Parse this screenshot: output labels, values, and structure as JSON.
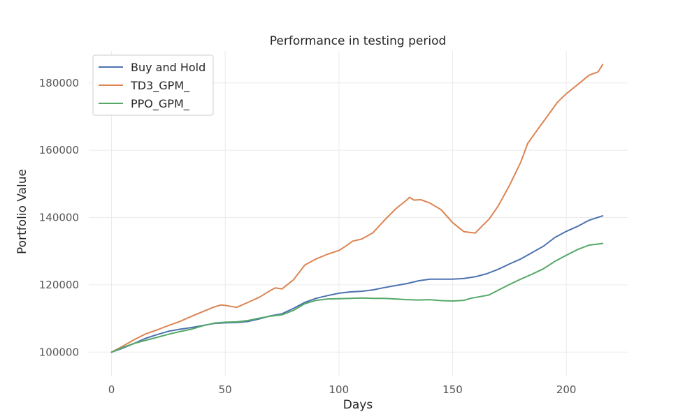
{
  "chart_data": {
    "type": "line",
    "title": "Performance in testing period",
    "xlabel": "Days",
    "ylabel": "Portfolio Value",
    "xlim": [
      -10,
      227
    ],
    "ylim": [
      93000,
      189500
    ],
    "xticks": [
      0,
      50,
      100,
      150,
      200
    ],
    "yticks": [
      100000,
      120000,
      140000,
      160000,
      180000
    ],
    "grid": true,
    "legend_position": "top-left",
    "series": [
      {
        "name": "Buy and Hold",
        "color": "#4c72b0",
        "points": [
          [
            0,
            100000
          ],
          [
            5,
            101200
          ],
          [
            10,
            102600
          ],
          [
            15,
            104100
          ],
          [
            20,
            105200
          ],
          [
            25,
            106200
          ],
          [
            30,
            106800
          ],
          [
            35,
            107300
          ],
          [
            40,
            107900
          ],
          [
            45,
            108500
          ],
          [
            50,
            108700
          ],
          [
            55,
            108800
          ],
          [
            60,
            109100
          ],
          [
            65,
            109900
          ],
          [
            70,
            110800
          ],
          [
            75,
            111400
          ],
          [
            80,
            113000
          ],
          [
            85,
            114800
          ],
          [
            90,
            116000
          ],
          [
            95,
            116800
          ],
          [
            100,
            117500
          ],
          [
            105,
            117900
          ],
          [
            110,
            118100
          ],
          [
            115,
            118500
          ],
          [
            120,
            119200
          ],
          [
            125,
            119800
          ],
          [
            130,
            120400
          ],
          [
            135,
            121200
          ],
          [
            140,
            121700
          ],
          [
            145,
            121700
          ],
          [
            150,
            121700
          ],
          [
            155,
            121900
          ],
          [
            160,
            122400
          ],
          [
            165,
            123300
          ],
          [
            170,
            124600
          ],
          [
            175,
            126200
          ],
          [
            180,
            127700
          ],
          [
            185,
            129600
          ],
          [
            190,
            131500
          ],
          [
            195,
            134100
          ],
          [
            200,
            135900
          ],
          [
            205,
            137400
          ],
          [
            210,
            139200
          ],
          [
            216,
            140500
          ]
        ]
      },
      {
        "name": "TD3_GPM_",
        "color": "#dd8452",
        "points": [
          [
            0,
            100000
          ],
          [
            5,
            101800
          ],
          [
            10,
            103700
          ],
          [
            15,
            105400
          ],
          [
            20,
            106600
          ],
          [
            25,
            107900
          ],
          [
            30,
            109100
          ],
          [
            35,
            110600
          ],
          [
            40,
            112000
          ],
          [
            45,
            113400
          ],
          [
            48,
            114000
          ],
          [
            50,
            113900
          ],
          [
            55,
            113300
          ],
          [
            60,
            114800
          ],
          [
            65,
            116300
          ],
          [
            70,
            118400
          ],
          [
            72,
            119100
          ],
          [
            75,
            118800
          ],
          [
            80,
            121500
          ],
          [
            85,
            125900
          ],
          [
            90,
            127700
          ],
          [
            95,
            129100
          ],
          [
            100,
            130200
          ],
          [
            103,
            131500
          ],
          [
            106,
            133000
          ],
          [
            110,
            133600
          ],
          [
            115,
            135500
          ],
          [
            120,
            139200
          ],
          [
            125,
            142600
          ],
          [
            130,
            145300
          ],
          [
            131,
            146000
          ],
          [
            133,
            145200
          ],
          [
            136,
            145300
          ],
          [
            140,
            144300
          ],
          [
            145,
            142300
          ],
          [
            150,
            138500
          ],
          [
            155,
            135800
          ],
          [
            160,
            135400
          ],
          [
            163,
            137500
          ],
          [
            166,
            139500
          ],
          [
            170,
            143400
          ],
          [
            175,
            149500
          ],
          [
            180,
            156500
          ],
          [
            183,
            162000
          ],
          [
            187,
            165800
          ],
          [
            192,
            170400
          ],
          [
            196,
            174200
          ],
          [
            200,
            176800
          ],
          [
            205,
            179500
          ],
          [
            210,
            182300
          ],
          [
            214,
            183300
          ],
          [
            216,
            185500
          ]
        ]
      },
      {
        "name": "PPO_GPM_",
        "color": "#55a868",
        "points": [
          [
            0,
            100000
          ],
          [
            5,
            101400
          ],
          [
            10,
            102600
          ],
          [
            15,
            103500
          ],
          [
            20,
            104400
          ],
          [
            25,
            105300
          ],
          [
            30,
            106100
          ],
          [
            35,
            106800
          ],
          [
            40,
            107800
          ],
          [
            45,
            108600
          ],
          [
            50,
            108900
          ],
          [
            55,
            109000
          ],
          [
            60,
            109400
          ],
          [
            65,
            110100
          ],
          [
            70,
            110700
          ],
          [
            75,
            111100
          ],
          [
            80,
            112400
          ],
          [
            85,
            114400
          ],
          [
            90,
            115400
          ],
          [
            95,
            115800
          ],
          [
            100,
            115900
          ],
          [
            105,
            116000
          ],
          [
            110,
            116100
          ],
          [
            115,
            116000
          ],
          [
            120,
            116000
          ],
          [
            125,
            115800
          ],
          [
            130,
            115600
          ],
          [
            135,
            115500
          ],
          [
            140,
            115600
          ],
          [
            145,
            115300
          ],
          [
            150,
            115200
          ],
          [
            155,
            115400
          ],
          [
            158,
            116000
          ],
          [
            162,
            116500
          ],
          [
            166,
            117000
          ],
          [
            170,
            118400
          ],
          [
            175,
            120100
          ],
          [
            180,
            121700
          ],
          [
            185,
            123200
          ],
          [
            190,
            124800
          ],
          [
            195,
            127000
          ],
          [
            200,
            128800
          ],
          [
            205,
            130500
          ],
          [
            210,
            131800
          ],
          [
            216,
            132300
          ]
        ]
      }
    ]
  }
}
